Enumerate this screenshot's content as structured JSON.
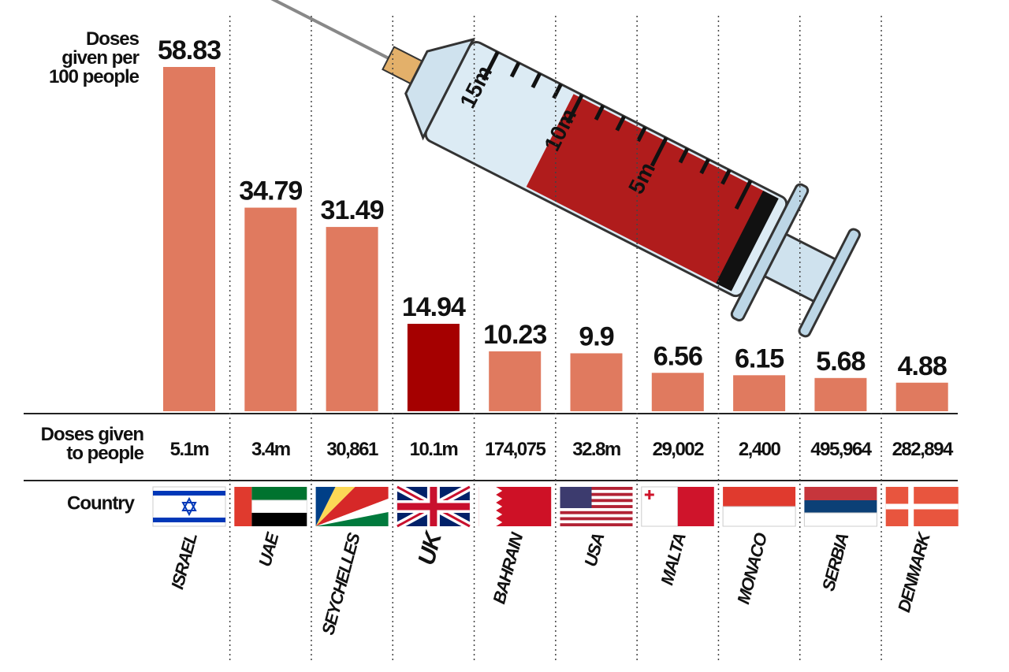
{
  "chart_data": {
    "type": "bar",
    "y_label": "Doses given per 100 people",
    "categories": [
      "ISRAEL",
      "UAE",
      "SEYCHELLES",
      "UK",
      "BAHRAIN",
      "USA",
      "MALTA",
      "MONACO",
      "SERBIA",
      "DENMARK"
    ],
    "values": [
      58.83,
      34.79,
      31.49,
      14.94,
      10.23,
      9.9,
      6.56,
      6.15,
      5.68,
      4.88
    ],
    "colors": [
      "#e07a5f",
      "#e07a5f",
      "#e07a5f",
      "#a50000",
      "#e07a5f",
      "#e07a5f",
      "#e07a5f",
      "#e07a5f",
      "#e07a5f",
      "#e07a5f"
    ],
    "doses_label": "Doses given to people",
    "doses_given": [
      "5.1m",
      "3.4m",
      "30,861",
      "10.1m",
      "174,075",
      "32.8m",
      "29,002",
      "2,400",
      "495,964",
      "282,894"
    ],
    "country_label": "Country",
    "syringe_labels": [
      "15m",
      "10m",
      "5m"
    ]
  }
}
